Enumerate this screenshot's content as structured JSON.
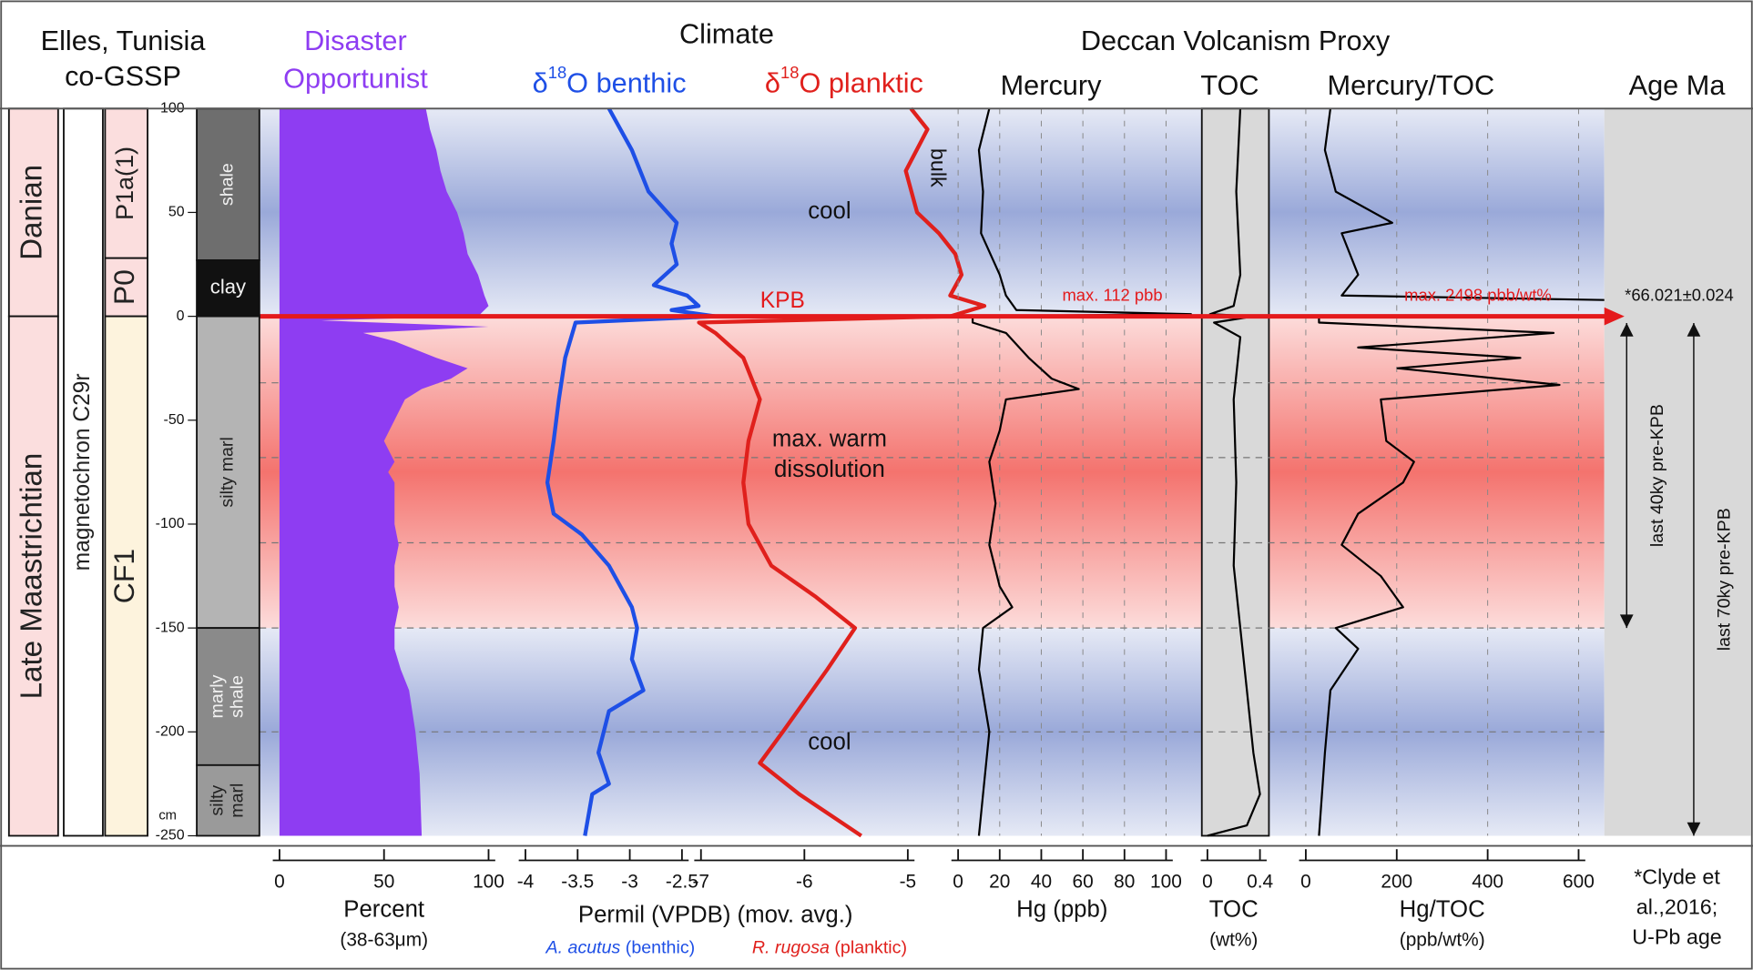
{
  "header": {
    "locality": [
      "Elles, Tunisia",
      "co-GSSP"
    ],
    "proxy_group": "Deccan Volcanism Proxy"
  },
  "columns": {
    "stage": [
      {
        "label": "Danian",
        "top": 100,
        "bottom": 0,
        "color": "#fbdede"
      },
      {
        "label": "Late Maastrichtian",
        "top": 0,
        "bottom": -250,
        "color": "#fbdede"
      }
    ],
    "magnetochron": {
      "label": "magnetochron C29r",
      "top": 100,
      "bottom": -250,
      "color": "#ffffff"
    },
    "zone": [
      {
        "label": "P1a(1)",
        "top": 100,
        "bottom": 28,
        "color": "#fbdede"
      },
      {
        "label": "P0",
        "top": 28,
        "bottom": 0,
        "color": "#fbdede"
      },
      {
        "label": "CF1",
        "top": 0,
        "bottom": -250,
        "color": "#fdf3dd"
      }
    ],
    "lithology": [
      {
        "lines": [
          "shale"
        ],
        "top": 100,
        "bottom": 27,
        "color": "#6e6e6e"
      },
      {
        "lines": [
          "clay"
        ],
        "top": 27,
        "bottom": 0,
        "color": "#111111",
        "horizontal": true
      },
      {
        "lines": [
          "silty marl"
        ],
        "top": 0,
        "bottom": -150,
        "color": "#b4b4b4"
      },
      {
        "lines": [
          "marly",
          "shale"
        ],
        "top": -150,
        "bottom": -216,
        "color": "#8a8a8a"
      },
      {
        "lines": [
          "silty",
          "marl"
        ],
        "top": -216,
        "bottom": -250,
        "color": "#9a9a9a"
      }
    ]
  },
  "depth_axis": {
    "ylim": [
      -250,
      100
    ],
    "yticks": [
      100,
      50,
      0,
      -50,
      -100,
      -150,
      -200,
      -250
    ],
    "unit": "cm"
  },
  "climate_zones": [
    {
      "lines": [
        "cool"
      ],
      "top": 100,
      "bottom": 0,
      "color": "#9aa9d9"
    },
    {
      "lines": [
        "max. warm",
        "dissolution"
      ],
      "top": 0,
      "bottom": -150,
      "color": "#f4736e"
    },
    {
      "lines": [
        "cool"
      ],
      "top": -150,
      "bottom": -250,
      "color": "#9aa9d9"
    }
  ],
  "reference_lines": [
    -32,
    -68,
    -109,
    -150,
    -200
  ],
  "boundary": {
    "label": "KPB",
    "depth": 0,
    "age": "*66.021±0.024",
    "color": "#e41a1c"
  },
  "age": {
    "title": "Age Ma",
    "arrows": [
      {
        "label": "last 40ky pre-KPB",
        "range": [
          0,
          -150
        ]
      },
      {
        "label": "last 70ky pre-KPB",
        "range": [
          0,
          -250
        ]
      }
    ],
    "note": [
      "*Clyde et",
      "al.,2016;",
      "U-Pb age"
    ]
  },
  "chart_data": [
    {
      "type": "area",
      "title": [
        "Disaster",
        "Opportunist"
      ],
      "title_color": "#8e3df2",
      "xlabel": "Percent",
      "xlabel_note": "(38-63μm)",
      "series": [
        {
          "color": "#8e3df2",
          "xlim": [
            0,
            100
          ],
          "xticks": [
            0,
            50,
            100
          ],
          "depth": [
            100,
            90,
            80,
            70,
            60,
            50,
            40,
            30,
            20,
            10,
            5,
            0,
            -2,
            -5,
            -8,
            -12,
            -20,
            -25,
            -30,
            -35,
            -40,
            -50,
            -60,
            -70,
            -75,
            -80,
            -90,
            -100,
            -110,
            -120,
            -130,
            -140,
            -150,
            -160,
            -170,
            -180,
            -200,
            -220,
            -250
          ],
          "values": [
            70,
            72,
            75,
            77,
            80,
            85,
            88,
            90,
            95,
            98,
            100,
            95,
            20,
            100,
            40,
            55,
            75,
            90,
            82,
            68,
            60,
            55,
            50,
            55,
            52,
            55,
            55,
            55,
            57,
            55,
            55,
            57,
            55,
            55,
            58,
            62,
            65,
            67,
            68
          ]
        }
      ]
    },
    {
      "type": "line",
      "title": "Climate",
      "xlabel": "Permil (VPDB) (mov. avg.)",
      "annotations": [
        "KPB",
        "bulk"
      ],
      "series": [
        {
          "name": [
            "δ",
            "18",
            "O benthic"
          ],
          "species": "A. acutus",
          "species_note": " (benthic)",
          "color": "#1e4fe6",
          "xlim": [
            -4,
            -2.5
          ],
          "xticks": [
            -4,
            -3.5,
            -3,
            -2.5
          ],
          "depth": [
            100,
            80,
            60,
            45,
            35,
            25,
            15,
            10,
            5,
            3,
            0,
            -3,
            -20,
            -40,
            -60,
            -80,
            -95,
            -105,
            -120,
            -140,
            -150,
            -165,
            -180,
            -190,
            -210,
            -225,
            -230,
            -250
          ],
          "values": [
            -3.2,
            -2.98,
            -2.82,
            -2.55,
            -2.6,
            -2.55,
            -2.77,
            -2.45,
            -2.34,
            -2.6,
            -2.18,
            -3.52,
            -3.62,
            -3.68,
            -3.73,
            -3.79,
            -3.73,
            -3.46,
            -3.2,
            -2.98,
            -2.93,
            -2.98,
            -2.87,
            -3.2,
            -3.3,
            -3.2,
            -3.36,
            -3.43
          ]
        },
        {
          "name": [
            "δ",
            "18",
            "O planktic"
          ],
          "species": "R. rugosa",
          "species_note": " (planktic)",
          "color": "#e0201c",
          "xlim": [
            -7,
            -5
          ],
          "xticks": [
            -7,
            -6,
            -5
          ],
          "depth": [
            100,
            90,
            70,
            50,
            40,
            30,
            20,
            10,
            5,
            0,
            -3,
            -8,
            -20,
            -40,
            -60,
            -80,
            -100,
            -120,
            -135,
            -150,
            -170,
            -200,
            -215,
            -230,
            -250
          ],
          "values": [
            -4.97,
            -4.81,
            -5.02,
            -4.91,
            -4.7,
            -4.54,
            -4.48,
            -4.59,
            -4.26,
            -4.59,
            -7.02,
            -6.86,
            -6.59,
            -6.43,
            -6.54,
            -6.59,
            -6.54,
            -6.32,
            -5.89,
            -5.51,
            -5.78,
            -6.21,
            -6.43,
            -6.05,
            -5.45
          ]
        }
      ]
    },
    {
      "type": "line",
      "title": "Mercury",
      "xlabel": "Hg (ppb)",
      "grid": true,
      "annotations": [
        "max. 112 pbb"
      ],
      "series": [
        {
          "color": "#000000",
          "xlim": [
            0,
            100
          ],
          "xticks": [
            0,
            20,
            40,
            60,
            80,
            100
          ],
          "depth": [
            100,
            80,
            60,
            40,
            20,
            10,
            3,
            1,
            0,
            -3,
            -8,
            -20,
            -30,
            -35,
            -40,
            -55,
            -70,
            -90,
            -110,
            -130,
            -140,
            -150,
            -170,
            -200,
            -230,
            -250
          ],
          "values": [
            15,
            10,
            12,
            11,
            20,
            23,
            28,
            112,
            7,
            7,
            23,
            34,
            45,
            58,
            23,
            20,
            15,
            18,
            15,
            20,
            26,
            12,
            10,
            15,
            12,
            10
          ]
        }
      ]
    },
    {
      "type": "line",
      "title": "TOC",
      "xlabel": "TOC",
      "xlabel_note": "(wt%)",
      "background": "#d9d9d9",
      "series": [
        {
          "color": "#000000",
          "xlim": [
            0,
            0.4
          ],
          "xticks": [
            0,
            0.4
          ],
          "depth": [
            100,
            60,
            20,
            5,
            1,
            0,
            -3,
            -10,
            -40,
            -80,
            -120,
            -150,
            -180,
            -210,
            -230,
            -245,
            -250
          ],
          "values": [
            0.25,
            0.22,
            0.25,
            0.2,
            0.02,
            0.35,
            0.05,
            0.25,
            0.2,
            0.22,
            0.2,
            0.25,
            0.3,
            0.35,
            0.4,
            0.3,
            0
          ]
        }
      ]
    },
    {
      "type": "line",
      "title": "Mercury/TOC",
      "xlabel": "Hg/TOC",
      "xlabel_note": "(ppb/wt%)",
      "grid": true,
      "annotations": [
        "max. 2498 pbb/wt%"
      ],
      "series": [
        {
          "color": "#000000",
          "xlim": [
            0,
            600
          ],
          "xticks": [
            0,
            200,
            400,
            600
          ],
          "depth": [
            100,
            80,
            60,
            45,
            40,
            20,
            10,
            1,
            0,
            -3,
            -8,
            -15,
            -20,
            -25,
            -33,
            -40,
            -60,
            -70,
            -80,
            -95,
            -110,
            -125,
            -140,
            -150,
            -160,
            -180,
            -210,
            -250
          ],
          "values": [
            54,
            42,
            66,
            190,
            79,
            115,
            79,
            2498,
            29,
            29,
            545,
            115,
            472,
            202,
            558,
            165,
            177,
            238,
            214,
            115,
            79,
            165,
            214,
            66,
            115,
            54,
            42,
            29
          ]
        }
      ]
    }
  ]
}
